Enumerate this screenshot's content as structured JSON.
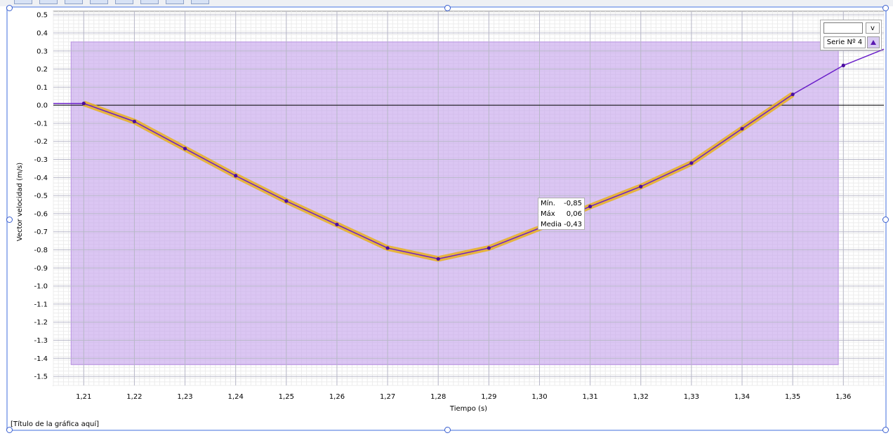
{
  "toolbar_buttons": 8,
  "chart_data": {
    "type": "line",
    "title": "[Título de la gráfica aquí]",
    "xlabel": "Tiempo (s)",
    "ylabel": "Vector velocidad (m/s)",
    "xlim": [
      1.204,
      1.368
    ],
    "ylim": [
      -1.55,
      0.52
    ],
    "xticks": [
      "1,21",
      "1,22",
      "1,23",
      "1,24",
      "1,25",
      "1,26",
      "1,27",
      "1,28",
      "1,29",
      "1,30",
      "1,31",
      "1,32",
      "1,33",
      "1,34",
      "1,35",
      "1,36"
    ],
    "yticks": [
      "0.5",
      "0.4",
      "0.3",
      "0.2",
      "0.1",
      "0.0",
      "-0.1",
      "-0.2",
      "-0.3",
      "-0.4",
      "-0.5",
      "-0.6",
      "-0.7",
      "-0.8",
      "-0.9",
      "-1.0",
      "-1.1",
      "-1.2",
      "-1.3",
      "-1.4",
      "-1.5"
    ],
    "selection_region": {
      "x": [
        1.2075,
        1.359
      ],
      "y": [
        -1.435,
        0.35
      ],
      "color": "#c8a8ec"
    },
    "series": [
      {
        "name": "Serie Nº 4",
        "color": "#6a1fc9",
        "x": [
          1.204,
          1.21,
          1.22,
          1.23,
          1.24,
          1.25,
          1.26,
          1.27,
          1.28,
          1.29,
          1.3,
          1.31,
          1.32,
          1.33,
          1.34,
          1.35,
          1.36,
          1.368
        ],
        "y": [
          0.01,
          0.01,
          -0.09,
          -0.24,
          -0.39,
          -0.53,
          -0.66,
          -0.79,
          -0.85,
          -0.79,
          -0.68,
          -0.56,
          -0.45,
          -0.32,
          -0.13,
          0.06,
          0.22,
          0.31
        ]
      }
    ],
    "highlight": {
      "color": "#e8b020",
      "x_range": [
        1.21,
        1.35
      ]
    },
    "grid": true
  },
  "legend": {
    "dropdown_label": "v",
    "series_label": "Serie Nº 4",
    "marker": "triangle-up-icon"
  },
  "stats": {
    "min_label": "Mín.",
    "min_value": "-0,85",
    "max_label": "Máx",
    "max_value": "0,06",
    "mean_label": "Media",
    "mean_value": "-0,43"
  }
}
